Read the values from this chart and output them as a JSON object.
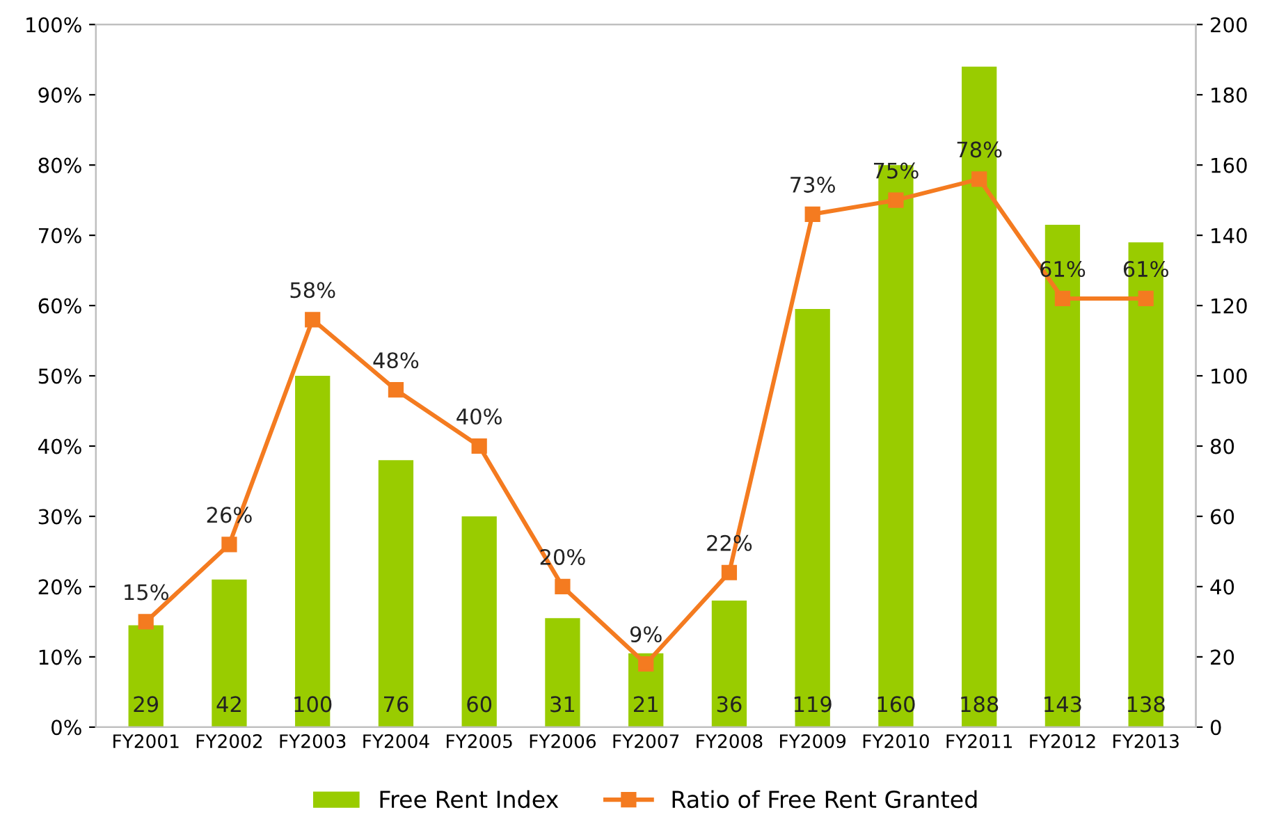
{
  "chart_data": {
    "type": "bar",
    "categories": [
      "FY2001",
      "FY2002",
      "FY2003",
      "FY2004",
      "FY2005",
      "FY2006",
      "FY2007",
      "FY2008",
      "FY2009",
      "FY2010",
      "FY2011",
      "FY2012",
      "FY2013"
    ],
    "series": [
      {
        "name": "Free Rent Index",
        "axis": "y2",
        "color": "#99cc00",
        "values": [
          29,
          42,
          100,
          76,
          60,
          31,
          21,
          36,
          119,
          160,
          188,
          143,
          138
        ],
        "value_labels": [
          "29",
          "42",
          "100",
          "76",
          "60",
          "31",
          "21",
          "36",
          "119",
          "160",
          "188",
          "143",
          "138"
        ]
      },
      {
        "name": "Ratio of Free Rent Granted",
        "type": "line",
        "axis": "y",
        "color": "#f47b20",
        "values": [
          15,
          26,
          58,
          48,
          40,
          20,
          9,
          22,
          73,
          75,
          78,
          61,
          61
        ],
        "value_labels": [
          "15%",
          "26%",
          "58%",
          "48%",
          "40%",
          "20%",
          "9%",
          "22%",
          "73%",
          "75%",
          "78%",
          "61%",
          "61%"
        ]
      }
    ],
    "ylim": [
      0,
      100
    ],
    "yticks": [
      {
        "value": 0,
        "label": "0%"
      },
      {
        "value": 10,
        "label": "10%"
      },
      {
        "value": 20,
        "label": "20%"
      },
      {
        "value": 30,
        "label": "30%"
      },
      {
        "value": 40,
        "label": "40%"
      },
      {
        "value": 50,
        "label": "50%"
      },
      {
        "value": 60,
        "label": "60%"
      },
      {
        "value": 70,
        "label": "70%"
      },
      {
        "value": 80,
        "label": "80%"
      },
      {
        "value": 90,
        "label": "90%"
      },
      {
        "value": 100,
        "label": "100%"
      }
    ],
    "y2lim": [
      0,
      200
    ],
    "y2ticks": [
      0,
      20,
      40,
      60,
      80,
      100,
      120,
      140,
      160,
      180,
      200
    ],
    "marker": "square",
    "line_style": "solid",
    "grid": false,
    "legend": "bottom"
  }
}
